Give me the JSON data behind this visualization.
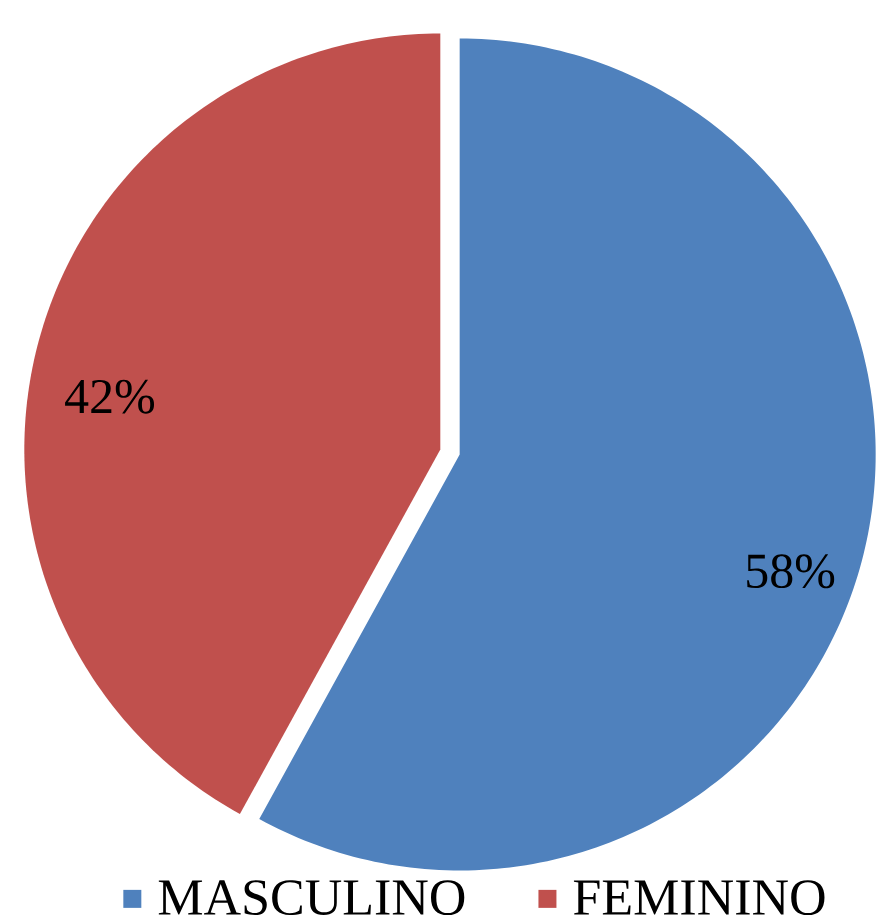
{
  "chart_data": {
    "type": "pie",
    "categories": [
      "MASCULINO",
      "FEMININO"
    ],
    "values": [
      58,
      42
    ],
    "colors": [
      "#4f81bd",
      "#c0504d"
    ],
    "value_labels": [
      "58%",
      "42%"
    ],
    "legend": "bottom"
  }
}
